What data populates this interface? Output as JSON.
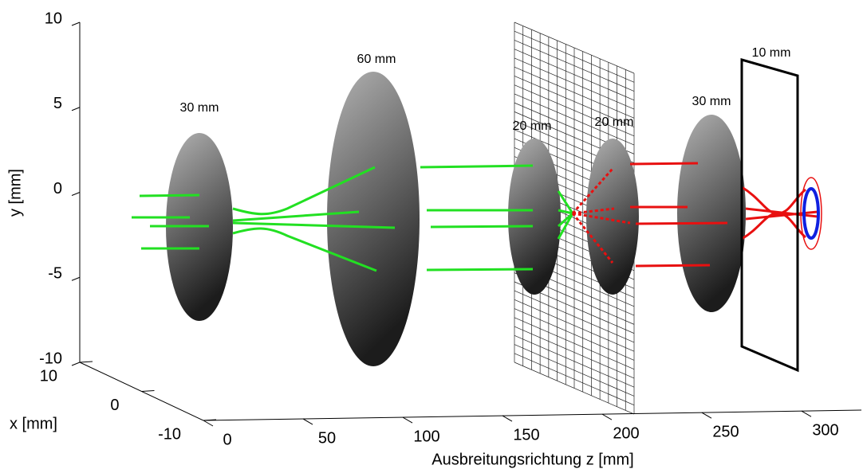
{
  "chart_data": {
    "type": "scene3d",
    "x_label": "x [mm]",
    "y_label": "y [mm]",
    "z_label": "Ausbreitungsrichtung z [mm]",
    "xlim": [
      -10,
      10
    ],
    "xticks": [
      -10,
      0,
      10
    ],
    "ylim": [
      -10,
      10
    ],
    "yticks": [
      -10,
      -5,
      0,
      5,
      10
    ],
    "zlim": [
      0,
      330
    ],
    "zticks": [
      0,
      50,
      100,
      150,
      200,
      250,
      300
    ],
    "annotations": [
      "30 mm",
      "60 mm",
      "20 mm",
      "20 mm",
      "30 mm",
      "10 mm"
    ]
  }
}
